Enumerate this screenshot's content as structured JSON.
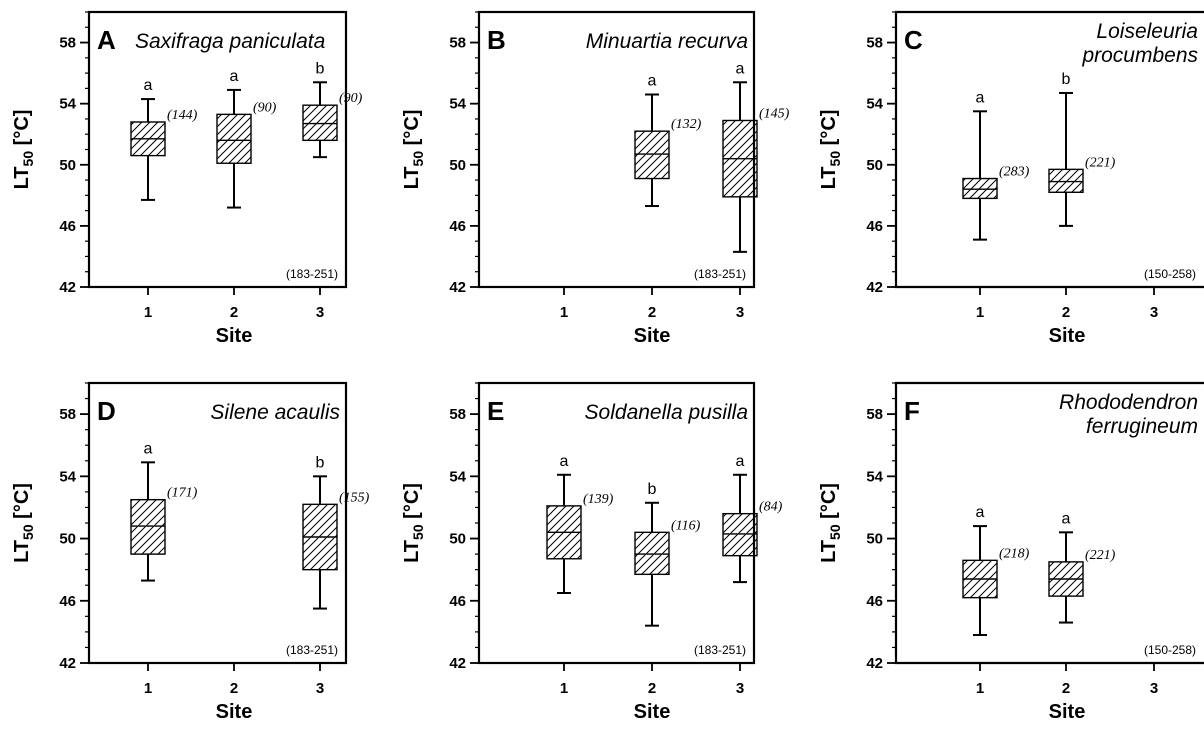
{
  "chart_data": [
    {
      "type": "box",
      "panel": "A",
      "species": [
        "Saxifraga paniculata"
      ],
      "xlabel": "Site",
      "ylabel_main": "LT",
      "ylabel_sub": "50",
      "ylabel_unit": "[°C]",
      "x_ticks": [
        "1",
        "2",
        "3"
      ],
      "ylim": [
        42,
        60
      ],
      "y_ticks": [
        42,
        46,
        50,
        54,
        58
      ],
      "range": "(183-251)",
      "boxes": [
        {
          "site": 1,
          "min": 47.7,
          "q1": 50.6,
          "median": 51.7,
          "q3": 52.8,
          "max": 54.3,
          "letter": "a",
          "n": "(144)"
        },
        {
          "site": 2,
          "min": 47.2,
          "q1": 50.1,
          "median": 51.6,
          "q3": 53.3,
          "max": 54.9,
          "letter": "a",
          "n": "(90)"
        },
        {
          "site": 3,
          "min": 50.5,
          "q1": 51.6,
          "median": 52.7,
          "q3": 53.9,
          "max": 55.4,
          "letter": "b",
          "n": "(90)"
        }
      ]
    },
    {
      "type": "box",
      "panel": "B",
      "species": [
        "Minuartia recurva"
      ],
      "xlabel": "Site",
      "ylabel_main": "LT",
      "ylabel_sub": "50",
      "ylabel_unit": "[°C]",
      "x_ticks": [
        "1",
        "2",
        "3"
      ],
      "ylim": [
        42,
        60
      ],
      "y_ticks": [
        42,
        46,
        50,
        54,
        58
      ],
      "range": "(183-251)",
      "boxes": [
        {
          "site": 2,
          "min": 47.3,
          "q1": 49.1,
          "median": 50.7,
          "q3": 52.2,
          "max": 54.6,
          "letter": "a",
          "n": "(132)"
        },
        {
          "site": 3,
          "min": 44.3,
          "q1": 47.9,
          "median": 50.4,
          "q3": 52.9,
          "max": 55.4,
          "letter": "a",
          "n": "(145)"
        }
      ]
    },
    {
      "type": "box",
      "panel": "C",
      "species": [
        "Loiseleuria",
        "procumbens"
      ],
      "xlabel": "Site",
      "ylabel_main": "LT",
      "ylabel_sub": "50",
      "ylabel_unit": "[°C]",
      "x_ticks": [
        "1",
        "2",
        "3"
      ],
      "ylim": [
        42,
        60
      ],
      "y_ticks": [
        42,
        46,
        50,
        54,
        58
      ],
      "range": "(150-258)",
      "boxes": [
        {
          "site": 1,
          "min": 45.1,
          "q1": 47.8,
          "median": 48.4,
          "q3": 49.1,
          "max": 53.5,
          "letter": "a",
          "n": "(283)"
        },
        {
          "site": 2,
          "min": 46.0,
          "q1": 48.2,
          "median": 48.9,
          "q3": 49.7,
          "max": 54.7,
          "letter": "b",
          "n": "(221)"
        }
      ]
    },
    {
      "type": "box",
      "panel": "D",
      "species": [
        "Silene acaulis"
      ],
      "xlabel": "Site",
      "ylabel_main": "LT",
      "ylabel_sub": "50",
      "ylabel_unit": "[°C]",
      "x_ticks": [
        "1",
        "2",
        "3"
      ],
      "ylim": [
        42,
        60
      ],
      "y_ticks": [
        42,
        46,
        50,
        54,
        58
      ],
      "range": "(183-251)",
      "boxes": [
        {
          "site": 1,
          "min": 47.3,
          "q1": 49.0,
          "median": 50.8,
          "q3": 52.5,
          "max": 54.9,
          "letter": "a",
          "n": "(171)"
        },
        {
          "site": 3,
          "min": 45.5,
          "q1": 48.0,
          "median": 50.1,
          "q3": 52.2,
          "max": 54.0,
          "letter": "b",
          "n": "(155)"
        }
      ]
    },
    {
      "type": "box",
      "panel": "E",
      "species": [
        "Soldanella pusilla"
      ],
      "xlabel": "Site",
      "ylabel_main": "LT",
      "ylabel_sub": "50",
      "ylabel_unit": "[°C]",
      "x_ticks": [
        "1",
        "2",
        "3"
      ],
      "ylim": [
        42,
        60
      ],
      "y_ticks": [
        42,
        46,
        50,
        54,
        58
      ],
      "range": "(183-251)",
      "boxes": [
        {
          "site": 1,
          "min": 46.5,
          "q1": 48.7,
          "median": 50.4,
          "q3": 52.1,
          "max": 54.1,
          "letter": "a",
          "n": "(139)"
        },
        {
          "site": 2,
          "min": 44.4,
          "q1": 47.7,
          "median": 49.0,
          "q3": 50.4,
          "max": 52.3,
          "letter": "b",
          "n": "(116)"
        },
        {
          "site": 3,
          "min": 47.2,
          "q1": 48.9,
          "median": 50.3,
          "q3": 51.6,
          "max": 54.1,
          "letter": "a",
          "n": "(84)"
        }
      ]
    },
    {
      "type": "box",
      "panel": "F",
      "species": [
        "Rhododendron",
        "ferrugineum"
      ],
      "xlabel": "Site",
      "ylabel_main": "LT",
      "ylabel_sub": "50",
      "ylabel_unit": "[°C]",
      "x_ticks": [
        "1",
        "2",
        "3"
      ],
      "ylim": [
        42,
        60
      ],
      "y_ticks": [
        42,
        46,
        50,
        54,
        58
      ],
      "range": "(150-258)",
      "boxes": [
        {
          "site": 1,
          "min": 43.8,
          "q1": 46.2,
          "median": 47.4,
          "q3": 48.6,
          "max": 50.8,
          "letter": "a",
          "n": "(218)"
        },
        {
          "site": 2,
          "min": 44.6,
          "q1": 46.3,
          "median": 47.4,
          "q3": 48.5,
          "max": 50.4,
          "letter": "a",
          "n": "(221)"
        }
      ]
    }
  ]
}
